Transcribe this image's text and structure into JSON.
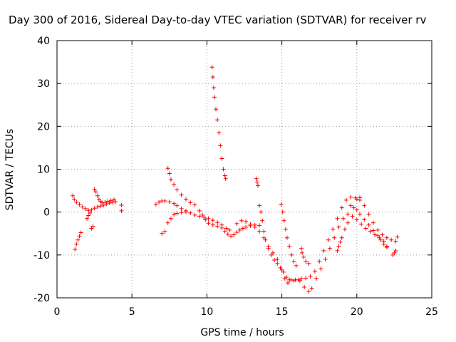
{
  "chart_data": {
    "type": "scatter",
    "title": "Day 300 of 2016, Sidereal Day-to-day VTEC variation (SDTVAR) for receiver rv",
    "xlabel": "GPS time / hours",
    "ylabel": "SDTVAR / TECUs",
    "xlim": [
      0,
      25
    ],
    "ylim": [
      -20,
      40
    ],
    "xticks": [
      0,
      5,
      10,
      15,
      20,
      25
    ],
    "yticks": [
      -20,
      -10,
      0,
      10,
      20,
      30,
      40
    ],
    "xtick_labels": [
      "0",
      "5",
      "10",
      "15",
      "20",
      "25"
    ],
    "ytick_labels": [
      "-20",
      "-10",
      "0",
      "10",
      "20",
      "30",
      "40"
    ],
    "grid": true,
    "marker": "+",
    "color": "#ff0000",
    "series": [
      {
        "points": [
          [
            1.05,
            3.8
          ],
          [
            1.15,
            3.0
          ],
          [
            1.3,
            2.3
          ],
          [
            1.5,
            1.8
          ],
          [
            1.7,
            1.2
          ],
          [
            1.9,
            0.8
          ],
          [
            2.1,
            0.4
          ],
          [
            2.3,
            0.5
          ],
          [
            2.5,
            0.9
          ],
          [
            2.7,
            1.2
          ],
          [
            2.9,
            1.4
          ],
          [
            3.1,
            1.6
          ],
          [
            3.3,
            1.9
          ],
          [
            3.5,
            2.1
          ],
          [
            3.7,
            2.3
          ],
          [
            3.9,
            2.4
          ],
          [
            4.3,
            1.6
          ],
          [
            4.3,
            0.3
          ]
        ]
      },
      {
        "points": [
          [
            1.2,
            -8.7
          ],
          [
            1.3,
            -7.5
          ],
          [
            1.4,
            -6.5
          ],
          [
            1.5,
            -5.6
          ],
          [
            1.6,
            -4.8
          ]
        ]
      },
      {
        "points": [
          [
            2.0,
            -1.5
          ],
          [
            2.1,
            -0.8
          ],
          [
            2.2,
            -0.2
          ],
          [
            2.3,
            -3.8
          ],
          [
            2.4,
            -3.3
          ]
        ]
      },
      {
        "points": [
          [
            2.5,
            5.3
          ],
          [
            2.6,
            4.7
          ],
          [
            2.7,
            3.8
          ],
          [
            2.8,
            3.0
          ],
          [
            2.9,
            2.5
          ],
          [
            3.0,
            2.2
          ],
          [
            3.2,
            2.3
          ],
          [
            3.4,
            2.5
          ],
          [
            3.6,
            2.7
          ],
          [
            3.8,
            2.9
          ]
        ]
      },
      {
        "points": [
          [
            6.6,
            1.8
          ],
          [
            6.8,
            2.3
          ],
          [
            7.0,
            2.6
          ],
          [
            7.2,
            2.6
          ],
          [
            7.5,
            2.4
          ],
          [
            7.8,
            2.0
          ],
          [
            8.0,
            1.5
          ],
          [
            8.3,
            0.8
          ],
          [
            8.6,
            0.3
          ],
          [
            8.9,
            -0.2
          ],
          [
            9.2,
            -0.7
          ],
          [
            9.5,
            -1.0
          ],
          [
            9.8,
            -1.2
          ],
          [
            10.1,
            -1.5
          ],
          [
            10.4,
            -1.9
          ],
          [
            10.7,
            -2.4
          ],
          [
            11.0,
            -3.0
          ],
          [
            11.3,
            -3.8
          ],
          [
            11.5,
            -4.2
          ]
        ]
      },
      {
        "points": [
          [
            7.0,
            -5.0
          ],
          [
            7.2,
            -4.5
          ],
          [
            7.4,
            -2.5
          ],
          [
            7.6,
            -1.5
          ],
          [
            7.8,
            -0.6
          ],
          [
            8.0,
            -0.3
          ],
          [
            8.3,
            -0.1
          ],
          [
            8.6,
            0.0
          ]
        ]
      },
      {
        "points": [
          [
            7.4,
            10.2
          ],
          [
            7.5,
            9.0
          ],
          [
            7.6,
            7.6
          ],
          [
            7.8,
            6.4
          ],
          [
            8.0,
            5.2
          ],
          [
            8.3,
            4.0
          ],
          [
            8.6,
            3.0
          ],
          [
            8.9,
            2.2
          ],
          [
            9.2,
            1.7
          ]
        ]
      },
      {
        "points": [
          [
            9.5,
            0.3
          ],
          [
            9.7,
            -0.7
          ],
          [
            9.9,
            -1.8
          ],
          [
            10.1,
            -2.6
          ],
          [
            10.4,
            -3.0
          ],
          [
            10.7,
            -3.3
          ],
          [
            11.0,
            -3.7
          ],
          [
            11.2,
            -4.5
          ],
          [
            11.4,
            -5.2
          ],
          [
            11.6,
            -5.6
          ],
          [
            11.8,
            -5.3
          ],
          [
            12.0,
            -4.7
          ],
          [
            12.2,
            -4.2
          ],
          [
            12.4,
            -3.8
          ],
          [
            12.6,
            -3.5
          ],
          [
            12.9,
            -3.2
          ],
          [
            13.2,
            -3.0
          ],
          [
            13.5,
            -3.1
          ]
        ]
      },
      {
        "points": [
          [
            10.35,
            33.8
          ],
          [
            10.4,
            31.5
          ],
          [
            10.45,
            29.0
          ],
          [
            10.5,
            26.8
          ],
          [
            10.6,
            24.0
          ],
          [
            10.7,
            21.5
          ],
          [
            10.8,
            18.5
          ],
          [
            10.9,
            15.5
          ],
          [
            11.0,
            12.5
          ],
          [
            11.1,
            10.0
          ],
          [
            11.2,
            8.5
          ],
          [
            11.25,
            7.8
          ]
        ]
      },
      {
        "points": [
          [
            12.0,
            -2.7
          ],
          [
            12.3,
            -2.0
          ],
          [
            12.6,
            -2.2
          ],
          [
            12.9,
            -2.8
          ],
          [
            13.2,
            -3.5
          ],
          [
            13.5,
            -4.5
          ],
          [
            13.8,
            -6.0
          ],
          [
            14.1,
            -8.0
          ],
          [
            14.4,
            -9.5
          ],
          [
            14.7,
            -11.0
          ],
          [
            15.0,
            -13.5
          ],
          [
            15.2,
            -15.5
          ],
          [
            15.4,
            -16.5
          ],
          [
            15.6,
            -15.8
          ],
          [
            15.9,
            -15.8
          ],
          [
            16.2,
            -16.0
          ],
          [
            16.5,
            -17.5
          ],
          [
            16.8,
            -18.5
          ],
          [
            17.0,
            -17.8
          ],
          [
            17.3,
            -15.5
          ],
          [
            17.6,
            -13.2
          ],
          [
            17.9,
            -11.0
          ],
          [
            18.2,
            -8.5
          ],
          [
            18.5,
            -6.0
          ],
          [
            18.8,
            -3.5
          ],
          [
            19.1,
            -1.5
          ],
          [
            19.4,
            -0.5
          ],
          [
            19.7,
            -1.0
          ],
          [
            20.0,
            -1.8
          ],
          [
            20.3,
            -2.8
          ],
          [
            20.6,
            -3.8
          ],
          [
            20.9,
            -4.5
          ],
          [
            21.2,
            -5.3
          ],
          [
            21.5,
            -6.0
          ],
          [
            21.8,
            -6.8
          ],
          [
            22.0,
            -8.0
          ]
        ]
      },
      {
        "points": [
          [
            13.3,
            7.8
          ],
          [
            13.35,
            7.0
          ],
          [
            13.4,
            6.2
          ]
        ]
      },
      {
        "points": [
          [
            13.5,
            1.5
          ],
          [
            13.6,
            0.0
          ],
          [
            13.7,
            -2.0
          ],
          [
            13.8,
            -4.5
          ],
          [
            13.9,
            -6.5
          ],
          [
            14.1,
            -8.5
          ],
          [
            14.3,
            -10.0
          ],
          [
            14.5,
            -11.2
          ],
          [
            14.7,
            -12.0
          ],
          [
            14.9,
            -13.0
          ],
          [
            15.1,
            -14.0
          ],
          [
            15.3,
            -15.2
          ],
          [
            15.5,
            -15.8
          ],
          [
            15.8,
            -16.0
          ],
          [
            16.1,
            -15.8
          ],
          [
            16.3,
            -15.5
          ],
          [
            16.6,
            -15.4
          ],
          [
            16.9,
            -15.0
          ],
          [
            17.2,
            -13.8
          ],
          [
            17.5,
            -11.5
          ],
          [
            17.8,
            -9.0
          ],
          [
            18.1,
            -6.5
          ],
          [
            18.4,
            -4.0
          ],
          [
            18.7,
            -1.5
          ],
          [
            19.0,
            1.0
          ],
          [
            19.3,
            2.8
          ],
          [
            19.6,
            3.5
          ],
          [
            19.9,
            3.3
          ],
          [
            20.2,
            2.8
          ],
          [
            20.5,
            1.5
          ],
          [
            20.8,
            -0.5
          ],
          [
            21.1,
            -2.5
          ],
          [
            21.4,
            -4.2
          ],
          [
            21.7,
            -5.3
          ],
          [
            22.0,
            -6.0
          ],
          [
            22.3,
            -6.5
          ],
          [
            22.6,
            -6.8
          ],
          [
            22.7,
            -5.8
          ]
        ]
      },
      {
        "points": [
          [
            14.95,
            1.8
          ],
          [
            15.05,
            0.0
          ],
          [
            15.15,
            -2.0
          ],
          [
            15.25,
            -4.0
          ],
          [
            15.35,
            -6.0
          ],
          [
            15.5,
            -8.0
          ],
          [
            15.65,
            -10.0
          ],
          [
            15.8,
            -11.5
          ],
          [
            15.95,
            -12.5
          ]
        ]
      },
      {
        "points": [
          [
            16.3,
            -8.5
          ],
          [
            16.35,
            -9.5
          ],
          [
            16.45,
            -10.5
          ],
          [
            16.6,
            -11.5
          ],
          [
            16.8,
            -12.0
          ]
        ]
      },
      {
        "points": [
          [
            18.7,
            -9.0
          ],
          [
            18.8,
            -8.0
          ],
          [
            18.9,
            -7.0
          ],
          [
            19.0,
            -6.0
          ],
          [
            19.2,
            -4.0
          ],
          [
            19.4,
            -2.5
          ]
        ]
      },
      {
        "points": [
          [
            19.6,
            1.5
          ],
          [
            19.8,
            1.0
          ],
          [
            20.0,
            0.5
          ],
          [
            20.2,
            -0.5
          ],
          [
            20.5,
            -1.8
          ],
          [
            20.8,
            -3.0
          ],
          [
            21.1,
            -4.3
          ],
          [
            21.4,
            -5.5
          ],
          [
            21.6,
            -6.5
          ],
          [
            21.8,
            -7.5
          ],
          [
            22.0,
            -8.2
          ]
        ]
      },
      {
        "points": [
          [
            20.0,
            3.0
          ],
          [
            20.2,
            3.4
          ]
        ]
      },
      {
        "points": [
          [
            22.4,
            -10.0
          ],
          [
            22.5,
            -9.5
          ],
          [
            22.6,
            -9.0
          ]
        ]
      }
    ]
  }
}
